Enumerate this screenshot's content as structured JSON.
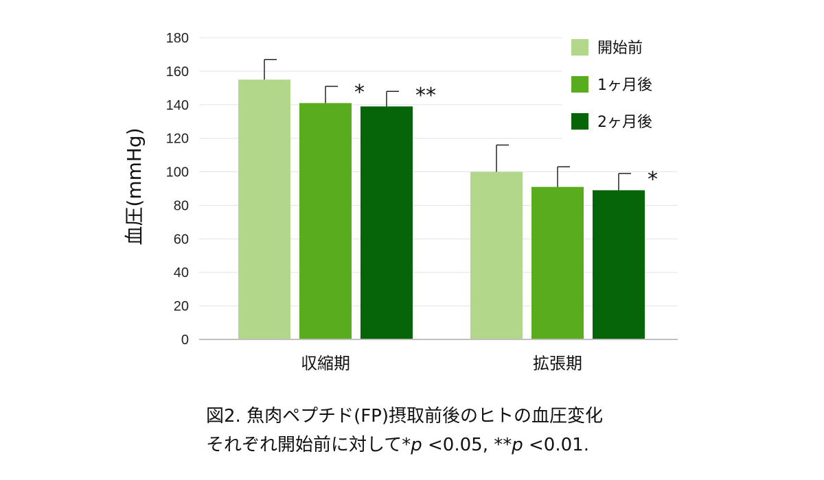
{
  "chart_data": {
    "type": "bar",
    "title": "",
    "xlabel": "",
    "ylabel": "血圧(mmHg)",
    "ylim": [
      0,
      180
    ],
    "yticks": [
      0,
      20,
      40,
      60,
      80,
      100,
      120,
      140,
      160,
      180
    ],
    "grid": true,
    "legend_position": "top-right",
    "categories": [
      "収縮期",
      "拡張期"
    ],
    "series": [
      {
        "name": "開始前",
        "color": "#b3d78a",
        "values": [
          155,
          100
        ],
        "errors": [
          12,
          16
        ],
        "significance": [
          "",
          ""
        ]
      },
      {
        "name": "1ヶ月後",
        "color": "#5aac1f",
        "values": [
          141,
          91
        ],
        "errors": [
          10,
          12
        ],
        "significance": [
          "*",
          ""
        ]
      },
      {
        "name": "2ヶ月後",
        "color": "#056508",
        "values": [
          139,
          89
        ],
        "errors": [
          9,
          10
        ],
        "significance": [
          "**",
          "*"
        ]
      }
    ]
  },
  "caption": {
    "line1": "図2. 魚肉ペプチド(FP)摂取前後のヒトの血圧変化",
    "line2_prefix": "それぞれ開始前に対して",
    "line2_star1": "*",
    "line2_p1": "p",
    "line2_mid": " <0.05, ",
    "line2_star2": "**",
    "line2_p2": "p",
    "line2_suffix": " <0.01."
  }
}
